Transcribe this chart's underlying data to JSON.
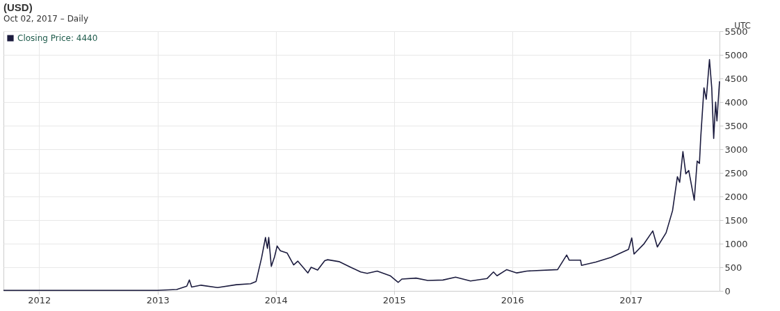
{
  "chart_data": {
    "type": "line",
    "title": "(USD)",
    "subtitle": "Oct 02, 2017 – Daily",
    "annotations": [
      "UTC"
    ],
    "x": [
      "2011-09-13",
      "2012-06-01",
      "2013-01-01",
      "2013-03-01",
      "2013-04-01",
      "2013-04-09",
      "2013-04-16",
      "2013-05-15",
      "2013-07-05",
      "2013-09-01",
      "2013-10-15",
      "2013-11-01",
      "2013-11-18",
      "2013-11-30",
      "2013-12-06",
      "2013-12-10",
      "2013-12-18",
      "2013-12-28",
      "2014-01-05",
      "2014-01-15",
      "2014-02-05",
      "2014-02-25",
      "2014-03-10",
      "2014-04-10",
      "2014-04-20",
      "2014-05-10",
      "2014-06-01",
      "2014-06-10",
      "2014-07-15",
      "2014-08-20",
      "2014-09-20",
      "2014-10-10",
      "2014-11-10",
      "2014-12-20",
      "2015-01-14",
      "2015-01-25",
      "2015-03-10",
      "2015-04-15",
      "2015-06-01",
      "2015-07-10",
      "2015-08-25",
      "2015-10-15",
      "2015-11-04",
      "2015-11-15",
      "2015-12-15",
      "2016-01-15",
      "2016-02-15",
      "2016-05-20",
      "2016-06-17",
      "2016-06-25",
      "2016-07-30",
      "2016-08-02",
      "2016-09-15",
      "2016-11-01",
      "2016-12-25",
      "2017-01-04",
      "2017-01-11",
      "2017-02-10",
      "2017-03-10",
      "2017-03-24",
      "2017-04-20",
      "2017-05-10",
      "2017-05-25",
      "2017-06-01",
      "2017-06-11",
      "2017-06-20",
      "2017-06-29",
      "2017-07-16",
      "2017-07-25",
      "2017-08-01",
      "2017-08-05",
      "2017-08-15",
      "2017-08-22",
      "2017-09-01",
      "2017-09-08",
      "2017-09-14",
      "2017-09-20",
      "2017-09-24",
      "2017-10-02"
    ],
    "series": [
      {
        "name": "Closing Price: 4440",
        "color": "#1b1b3e",
        "values": [
          10,
          10,
          10,
          30,
          100,
          230,
          80,
          120,
          70,
          130,
          150,
          200,
          700,
          1130,
          900,
          1130,
          520,
          720,
          950,
          850,
          800,
          550,
          630,
          380,
          500,
          440,
          640,
          660,
          620,
          500,
          400,
          370,
          420,
          320,
          180,
          250,
          270,
          220,
          230,
          290,
          210,
          260,
          400,
          320,
          450,
          380,
          420,
          450,
          760,
          650,
          650,
          540,
          610,
          710,
          880,
          1120,
          780,
          990,
          1270,
          930,
          1230,
          1700,
          2420,
          2300,
          2950,
          2480,
          2550,
          1920,
          2750,
          2700,
          3250,
          4300,
          4060,
          4900,
          4300,
          3230,
          4000,
          3600,
          4440
        ]
      }
    ],
    "xlim": [
      "2011-09-13",
      "2017-10-02"
    ],
    "xticks": [
      {
        "value": "2012-01-01",
        "label": "2012"
      },
      {
        "value": "2013-01-01",
        "label": "2013"
      },
      {
        "value": "2014-01-01",
        "label": "2014"
      },
      {
        "value": "2015-01-01",
        "label": "2015"
      },
      {
        "value": "2016-01-01",
        "label": "2016"
      },
      {
        "value": "2017-01-01",
        "label": "2017"
      }
    ],
    "ylim": [
      0,
      5500
    ],
    "yticks": [
      0,
      500,
      1000,
      1500,
      2000,
      2500,
      3000,
      3500,
      4000,
      4500,
      5000,
      5500
    ],
    "grid": true,
    "legend": "top left",
    "marker": "none",
    "line_style": "solid"
  }
}
